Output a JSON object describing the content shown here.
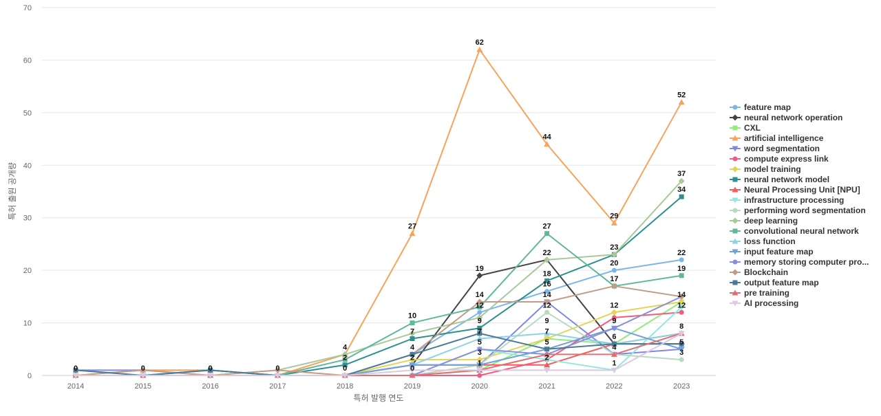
{
  "chart_data": {
    "type": "line",
    "title": "",
    "xlabel": "특허 발행 연도",
    "ylabel": "특허 출원 공개량",
    "ylim": [
      0,
      70
    ],
    "yticks": [
      0,
      10,
      20,
      30,
      40,
      50,
      60,
      70
    ],
    "x": [
      "2014",
      "2015",
      "2016",
      "2017",
      "2018",
      "2019",
      "2020",
      "2021",
      "2022",
      "2023"
    ],
    "grid": true,
    "legend_position": "right",
    "series": [
      {
        "name": "feature map",
        "color": "#7cb5ec",
        "marker": "circle",
        "values": [
          1,
          1,
          1,
          0,
          0,
          4,
          12,
          16,
          20,
          22
        ]
      },
      {
        "name": "neural network operation",
        "color": "#434348",
        "marker": "diamond",
        "values": [
          0,
          0,
          0,
          0,
          0,
          2,
          19,
          22,
          6,
          6
        ]
      },
      {
        "name": "CXL",
        "color": "#90ed7d",
        "marker": "square",
        "values": [
          0,
          0,
          0,
          0,
          0,
          0,
          1,
          7,
          6,
          14
        ]
      },
      {
        "name": "artificial intelligence",
        "color": "#f7a35c",
        "marker": "triangle",
        "values": [
          0,
          1,
          1,
          0,
          4,
          27,
          62,
          44,
          29,
          52
        ]
      },
      {
        "name": "word segmentation",
        "color": "#8085e9",
        "marker": "triangle-down",
        "values": [
          0,
          0,
          0,
          0,
          0,
          2,
          2,
          14,
          4,
          5
        ]
      },
      {
        "name": "compute express link",
        "color": "#f15c80",
        "marker": "circle",
        "values": [
          0,
          0,
          0,
          0,
          0,
          0,
          0,
          3,
          11,
          12
        ]
      },
      {
        "name": "model training",
        "color": "#e4d354",
        "marker": "diamond",
        "values": [
          0,
          0,
          0,
          0,
          0,
          3,
          3,
          7,
          12,
          14
        ]
      },
      {
        "name": "neural network model",
        "color": "#2b908f",
        "marker": "square",
        "values": [
          0,
          0,
          1,
          0,
          2,
          7,
          9,
          18,
          23,
          34
        ]
      },
      {
        "name": "Neural Processing Unit [NPU]",
        "color": "#f45b5b",
        "marker": "triangle",
        "values": [
          0,
          0,
          0,
          0,
          0,
          0,
          2,
          2,
          6,
          8
        ]
      },
      {
        "name": "infrastructure processing",
        "color": "#91e8e1",
        "marker": "triangle-down",
        "values": [
          0,
          0,
          0,
          0,
          0,
          0,
          5,
          3,
          1,
          13
        ]
      },
      {
        "name": "performing word segmentation",
        "color": "#b5dbc0",
        "marker": "circle",
        "values": [
          0,
          0,
          0,
          0,
          0,
          0,
          2,
          12,
          4,
          3
        ]
      },
      {
        "name": "deep learning",
        "color": "#a8c99a",
        "marker": "diamond",
        "values": [
          0,
          0,
          0,
          1,
          4,
          8,
          11,
          22,
          23,
          37
        ]
      },
      {
        "name": "convolutional neural network",
        "color": "#5fb89a",
        "marker": "square",
        "values": [
          0,
          0,
          0,
          0,
          3,
          10,
          13,
          27,
          17,
          19
        ]
      },
      {
        "name": "loss function",
        "color": "#8cd3e8",
        "marker": "triangle",
        "values": [
          0,
          0,
          0,
          0,
          0,
          2,
          7,
          8,
          6,
          8
        ]
      },
      {
        "name": "input feature map",
        "color": "#6fa0d8",
        "marker": "triangle-down",
        "values": [
          0,
          0,
          0,
          0,
          0,
          2,
          2,
          5,
          9,
          5
        ]
      },
      {
        "name": "memory storing computer pro...",
        "color": "#8a8ee0",
        "marker": "circle",
        "values": [
          1,
          1,
          0,
          0,
          0,
          0,
          5,
          4,
          9,
          15
        ]
      },
      {
        "name": "Blockchain",
        "color": "#c49c86",
        "marker": "diamond",
        "values": [
          0,
          1,
          0,
          1,
          0,
          4,
          14,
          14,
          17,
          15
        ]
      },
      {
        "name": "output feature map",
        "color": "#4a7a96",
        "marker": "square",
        "values": [
          1,
          0,
          1,
          0,
          0,
          4,
          8,
          5,
          6,
          6
        ]
      },
      {
        "name": "pre training",
        "color": "#e07070",
        "marker": "triangle",
        "values": [
          0,
          0,
          0,
          0,
          0,
          0,
          1,
          4,
          4,
          8
        ]
      },
      {
        "name": "AI processing",
        "color": "#dcc8e0",
        "marker": "triangle-down",
        "values": [
          0,
          0,
          0,
          0,
          0,
          1,
          1,
          1,
          1,
          8
        ]
      }
    ],
    "data_labels": [
      {
        "x": "2014",
        "value": 0
      },
      {
        "x": "2015",
        "value": 0
      },
      {
        "x": "2016",
        "value": 0
      },
      {
        "x": "2017",
        "value": 0
      },
      {
        "x": "2018",
        "value": 4
      },
      {
        "x": "2018",
        "value": 2
      },
      {
        "x": "2018",
        "value": 0
      },
      {
        "x": "2019",
        "value": 27
      },
      {
        "x": "2019",
        "value": 10
      },
      {
        "x": "2019",
        "value": 7
      },
      {
        "x": "2019",
        "value": 4
      },
      {
        "x": "2019",
        "value": 2
      },
      {
        "x": "2019",
        "value": 0
      },
      {
        "x": "2020",
        "value": 62
      },
      {
        "x": "2020",
        "value": 19
      },
      {
        "x": "2020",
        "value": 14
      },
      {
        "x": "2020",
        "value": 12
      },
      {
        "x": "2020",
        "value": 9
      },
      {
        "x": "2020",
        "value": 7
      },
      {
        "x": "2020",
        "value": 5
      },
      {
        "x": "2020",
        "value": 3
      },
      {
        "x": "2020",
        "value": 1
      },
      {
        "x": "2021",
        "value": 44
      },
      {
        "x": "2021",
        "value": 27
      },
      {
        "x": "2021",
        "value": 22
      },
      {
        "x": "2021",
        "value": 18
      },
      {
        "x": "2021",
        "value": 16
      },
      {
        "x": "2021",
        "value": 14
      },
      {
        "x": "2021",
        "value": 12
      },
      {
        "x": "2021",
        "value": 9
      },
      {
        "x": "2021",
        "value": 7
      },
      {
        "x": "2021",
        "value": 5
      },
      {
        "x": "2021",
        "value": 2
      },
      {
        "x": "2022",
        "value": 29
      },
      {
        "x": "2022",
        "value": 23
      },
      {
        "x": "2022",
        "value": 20
      },
      {
        "x": "2022",
        "value": 17
      },
      {
        "x": "2022",
        "value": 12
      },
      {
        "x": "2022",
        "value": 9
      },
      {
        "x": "2022",
        "value": 6
      },
      {
        "x": "2022",
        "value": 4
      },
      {
        "x": "2022",
        "value": 1
      },
      {
        "x": "2023",
        "value": 52
      },
      {
        "x": "2023",
        "value": 37
      },
      {
        "x": "2023",
        "value": 34
      },
      {
        "x": "2023",
        "value": 22
      },
      {
        "x": "2023",
        "value": 19
      },
      {
        "x": "2023",
        "value": 14
      },
      {
        "x": "2023",
        "value": 12
      },
      {
        "x": "2023",
        "value": 8
      },
      {
        "x": "2023",
        "value": 5
      },
      {
        "x": "2023",
        "value": 3
      }
    ]
  }
}
